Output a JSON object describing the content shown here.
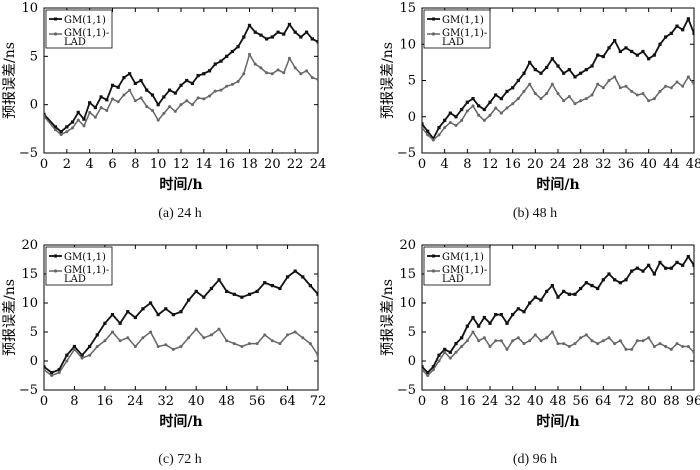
{
  "colors": {
    "series1": "#111111",
    "series2": "#666666",
    "axis": "#000000"
  },
  "legend": {
    "series1": "GM(1,1)",
    "series2_line1": "GM(1,1)-",
    "series2_line2": "LAD"
  },
  "chart_data": [
    {
      "type": "line",
      "caption": "(a) 24 h",
      "xlabel": "时间/h",
      "ylabel": "预报误差/ns",
      "xlim": [
        0,
        24
      ],
      "ylim": [
        -5,
        10
      ],
      "xticks": [
        "0",
        "2",
        "4",
        "6",
        "8",
        "10",
        "12",
        "14",
        "16",
        "18",
        "20",
        "22",
        "24"
      ],
      "yticks": [
        "−5",
        "0",
        "5",
        "10"
      ],
      "series": [
        {
          "name": "GM(1,1)",
          "x": [
            0,
            1,
            1.5,
            2,
            2.5,
            3,
            3.5,
            4,
            4.5,
            5,
            5.5,
            6,
            6.5,
            7,
            7.5,
            8,
            8.5,
            9,
            9.5,
            10,
            10.5,
            11,
            11.5,
            12,
            12.5,
            13,
            13.5,
            14,
            14.5,
            15,
            15.5,
            16,
            16.5,
            17,
            17.5,
            18,
            18.5,
            19,
            19.5,
            20,
            20.5,
            21,
            21.5,
            22,
            22.5,
            23,
            23.5,
            24
          ],
          "values": [
            -1,
            -2.3,
            -2.8,
            -2.3,
            -1.8,
            -0.8,
            -1.5,
            0.2,
            -0.3,
            0.8,
            0.5,
            2,
            1.8,
            2.8,
            3.2,
            2.2,
            2.5,
            1.5,
            1,
            0,
            0.8,
            1.5,
            1.2,
            2,
            2.5,
            2.2,
            3,
            3.2,
            3.5,
            4.2,
            4.5,
            5,
            5.5,
            6,
            7,
            8.2,
            7.5,
            7.2,
            6.8,
            7,
            7.5,
            7.3,
            8.3,
            7.5,
            7,
            7.5,
            6.8,
            6.5
          ]
        },
        {
          "name": "GM(1,1)-LAD",
          "x": [
            0,
            1,
            1.5,
            2,
            2.5,
            3,
            3.5,
            4,
            4.5,
            5,
            5.5,
            6,
            6.5,
            7,
            7.5,
            8,
            8.5,
            9,
            9.5,
            10,
            10.5,
            11,
            11.5,
            12,
            12.5,
            13,
            13.5,
            14,
            14.5,
            15,
            15.5,
            16,
            16.5,
            17,
            17.5,
            18,
            18.5,
            19,
            19.5,
            20,
            20.5,
            21,
            21.5,
            22,
            22.5,
            23,
            23.5,
            24
          ],
          "values": [
            -1.2,
            -2.6,
            -3.1,
            -2.8,
            -2.4,
            -1.6,
            -2.2,
            -0.8,
            -1.3,
            -0.3,
            -0.6,
            0.6,
            0.3,
            1,
            1.5,
            0.4,
            0.7,
            -0.2,
            -0.6,
            -1.6,
            -0.9,
            -0.2,
            -0.7,
            0,
            0.4,
            0,
            0.7,
            0.6,
            0.9,
            1.4,
            1.5,
            1.9,
            2.1,
            2.4,
            3.2,
            5.2,
            4.2,
            3.8,
            3.3,
            3.2,
            3.6,
            3.3,
            4.8,
            3.8,
            3.2,
            3.5,
            2.8,
            2.6
          ]
        }
      ]
    },
    {
      "type": "line",
      "caption": "(b) 48 h",
      "xlabel": "时间/h",
      "ylabel": "预报误差/ns",
      "xlim": [
        0,
        48
      ],
      "ylim": [
        -5,
        15
      ],
      "xticks": [
        "0",
        "4",
        "8",
        "12",
        "16",
        "20",
        "24",
        "28",
        "32",
        "36",
        "40",
        "44",
        "48"
      ],
      "yticks": [
        "−5",
        "0",
        "5",
        "10",
        "15"
      ],
      "series": [
        {
          "name": "GM(1,1)",
          "x": [
            0,
            1,
            2,
            3,
            4,
            5,
            6,
            7,
            8,
            9,
            10,
            11,
            12,
            13,
            14,
            15,
            16,
            17,
            18,
            19,
            20,
            21,
            22,
            23,
            24,
            25,
            26,
            27,
            28,
            29,
            30,
            31,
            32,
            33,
            34,
            35,
            36,
            37,
            38,
            39,
            40,
            41,
            42,
            43,
            44,
            45,
            46,
            47,
            48
          ],
          "values": [
            -1,
            -2,
            -3,
            -1.5,
            -0.5,
            0.5,
            0,
            1,
            2,
            2.5,
            1.5,
            1,
            2,
            3,
            2.5,
            3.5,
            4,
            5,
            6,
            7.5,
            6.5,
            6,
            6.8,
            8,
            7,
            6,
            6.5,
            5.5,
            6,
            6.5,
            7,
            8.5,
            8.3,
            9.5,
            10.5,
            9,
            9.5,
            9,
            8.5,
            9,
            8,
            8.5,
            10,
            11,
            11.5,
            12.5,
            12,
            13.5,
            11.5
          ]
        },
        {
          "name": "GM(1,1)-LAD",
          "x": [
            0,
            1,
            2,
            3,
            4,
            5,
            6,
            7,
            8,
            9,
            10,
            11,
            12,
            13,
            14,
            15,
            16,
            17,
            18,
            19,
            20,
            21,
            22,
            23,
            24,
            25,
            26,
            27,
            28,
            29,
            30,
            31,
            32,
            33,
            34,
            35,
            36,
            37,
            38,
            39,
            40,
            41,
            42,
            43,
            44,
            45,
            46,
            47,
            48
          ],
          "values": [
            -1.5,
            -2.5,
            -3.2,
            -2.5,
            -1.5,
            -0.8,
            -1.2,
            -0.5,
            0.8,
            1.5,
            0.2,
            -0.5,
            0.2,
            1.2,
            0.5,
            1.2,
            1.8,
            2.5,
            3.5,
            4.5,
            3.2,
            2.5,
            3.2,
            4.5,
            3.2,
            2.2,
            2.8,
            1.8,
            2.2,
            2.5,
            3,
            4.5,
            4,
            5,
            5.5,
            4,
            4.2,
            3.5,
            3,
            3.2,
            2.2,
            2.5,
            3.5,
            4.2,
            4,
            4.8,
            4.2,
            5.5,
            4.5
          ]
        }
      ]
    },
    {
      "type": "line",
      "caption": "(c) 72 h",
      "xlabel": "时间/h",
      "ylabel": "预报误差/ns",
      "xlim": [
        0,
        72
      ],
      "ylim": [
        -5,
        20
      ],
      "xticks": [
        "0",
        "8",
        "16",
        "24",
        "32",
        "40",
        "48",
        "56",
        "64",
        "72"
      ],
      "yticks": [
        "−5",
        "0",
        "5",
        "10",
        "15",
        "20"
      ],
      "series": [
        {
          "name": "GM(1,1)",
          "x": [
            0,
            2,
            4,
            6,
            8,
            10,
            12,
            14,
            16,
            18,
            20,
            22,
            24,
            26,
            28,
            30,
            32,
            34,
            36,
            38,
            40,
            42,
            44,
            46,
            48,
            50,
            52,
            54,
            56,
            58,
            60,
            62,
            64,
            66,
            68,
            70,
            72
          ],
          "values": [
            -1,
            -2,
            -1.5,
            1,
            2.5,
            1,
            2.5,
            4.5,
            6.5,
            8,
            6.5,
            8.5,
            7.5,
            9,
            10,
            8,
            9,
            8,
            8.5,
            10.5,
            12,
            11,
            12.5,
            14,
            12,
            11.5,
            11,
            11.5,
            12,
            13.5,
            13,
            12.5,
            14.5,
            15.5,
            14.5,
            13,
            11.5
          ]
        },
        {
          "name": "GM(1,1)-LAD",
          "x": [
            0,
            2,
            4,
            6,
            8,
            10,
            12,
            14,
            16,
            18,
            20,
            22,
            24,
            26,
            28,
            30,
            32,
            34,
            36,
            38,
            40,
            42,
            44,
            46,
            48,
            50,
            52,
            54,
            56,
            58,
            60,
            62,
            64,
            66,
            68,
            70,
            72
          ],
          "values": [
            -1.5,
            -2.5,
            -2,
            0,
            2,
            0.5,
            1,
            2.5,
            3.5,
            5,
            3.5,
            4,
            2.5,
            4,
            5,
            2.5,
            2.8,
            2,
            2.5,
            4,
            5.5,
            4,
            4.5,
            5.5,
            3.5,
            3,
            2.5,
            3,
            3,
            4.5,
            3.5,
            3,
            4.5,
            5,
            4,
            3,
            1
          ]
        }
      ]
    },
    {
      "type": "line",
      "caption": "(d) 96 h",
      "xlabel": "时间/h",
      "ylabel": "预报误差/ns",
      "xlim": [
        0,
        96
      ],
      "ylim": [
        -5,
        20
      ],
      "xticks": [
        "0",
        "8",
        "16",
        "24",
        "32",
        "40",
        "48",
        "56",
        "64",
        "72",
        "80",
        "88",
        "96"
      ],
      "yticks": [
        "−5",
        "0",
        "5",
        "10",
        "15",
        "20"
      ],
      "series": [
        {
          "name": "GM(1,1)",
          "x": [
            0,
            2,
            4,
            6,
            8,
            10,
            12,
            14,
            16,
            18,
            20,
            22,
            24,
            26,
            28,
            30,
            32,
            34,
            36,
            38,
            40,
            42,
            44,
            46,
            48,
            50,
            52,
            54,
            56,
            58,
            60,
            62,
            64,
            66,
            68,
            70,
            72,
            74,
            76,
            78,
            80,
            82,
            84,
            86,
            88,
            90,
            92,
            94,
            96
          ],
          "values": [
            -1,
            -2,
            -1,
            1,
            2,
            1.5,
            3,
            4,
            6,
            7.5,
            6,
            7.5,
            6.5,
            8,
            8,
            6.5,
            8,
            9,
            8.5,
            10,
            11,
            10.5,
            12,
            13,
            11,
            12,
            11.5,
            11.5,
            12.5,
            13.5,
            13,
            12.5,
            14,
            15,
            14,
            13.5,
            14,
            15.5,
            16,
            15.5,
            16.5,
            15,
            17,
            16,
            16,
            17,
            16.5,
            18,
            16.5
          ]
        },
        {
          "name": "GM(1,1)-LAD",
          "x": [
            0,
            2,
            4,
            6,
            8,
            10,
            12,
            14,
            16,
            18,
            20,
            22,
            24,
            26,
            28,
            30,
            32,
            34,
            36,
            38,
            40,
            42,
            44,
            46,
            48,
            50,
            52,
            54,
            56,
            58,
            60,
            62,
            64,
            66,
            68,
            70,
            72,
            74,
            76,
            78,
            80,
            82,
            84,
            86,
            88,
            90,
            92,
            94,
            96
          ],
          "values": [
            -1.5,
            -2.5,
            -1.5,
            0,
            1.5,
            0.5,
            1.5,
            2.5,
            3.5,
            5,
            3.5,
            4,
            2.5,
            3.5,
            3.5,
            2,
            3.5,
            4,
            3,
            3.5,
            4.5,
            3.5,
            4,
            5,
            3,
            3,
            2.5,
            3,
            4,
            4.5,
            3.5,
            3,
            3.5,
            4,
            3,
            3.5,
            2,
            2,
            3.5,
            3.5,
            4,
            2.5,
            3,
            2.5,
            2,
            3,
            2.5,
            2.5,
            1.5
          ]
        }
      ]
    }
  ]
}
